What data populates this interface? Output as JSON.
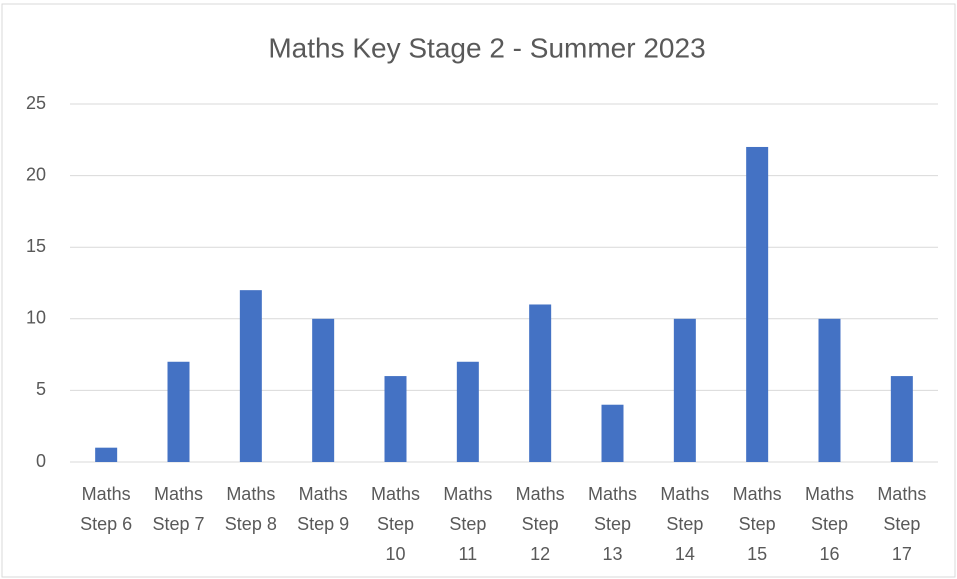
{
  "chart_data": {
    "type": "bar",
    "title": "Maths Key Stage 2 - Summer 2023",
    "categories": [
      "Maths Step 6",
      "Maths Step 7",
      "Maths Step 8",
      "Maths Step 9",
      "Maths Step 10",
      "Maths Step 11",
      "Maths Step 12",
      "Maths Step 13",
      "Maths Step 14",
      "Maths Step 15",
      "Maths Step 16",
      "Maths Step 17"
    ],
    "values": [
      1,
      7,
      12,
      10,
      6,
      7,
      11,
      4,
      10,
      22,
      10,
      6
    ],
    "color": "#4472c4",
    "ylim": [
      0,
      25
    ],
    "yticks": [
      0,
      5,
      10,
      15,
      20,
      25
    ],
    "grid": true
  }
}
